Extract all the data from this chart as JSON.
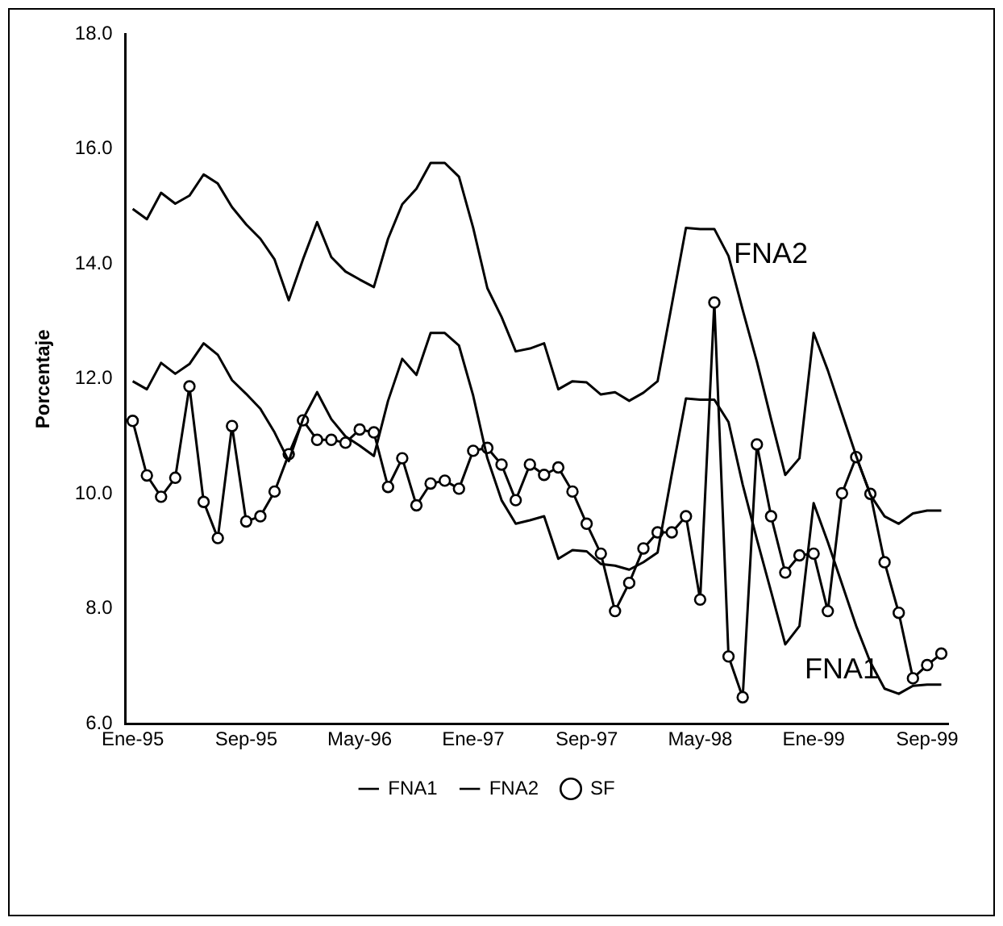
{
  "chart_data": {
    "type": "line",
    "ylabel": "Porcentaje",
    "legend": "bottom",
    "x": [
      "1995-01",
      "1995-02",
      "1995-03",
      "1995-04",
      "1995-05",
      "1995-06",
      "1995-07",
      "1995-08",
      "1995-09",
      "1995-10",
      "1995-11",
      "1995-12",
      "1996-01",
      "1996-02",
      "1996-03",
      "1996-04",
      "1996-05",
      "1996-06",
      "1996-07",
      "1996-08",
      "1996-09",
      "1996-10",
      "1996-11",
      "1996-12",
      "1997-01",
      "1997-02",
      "1997-03",
      "1997-04",
      "1997-05",
      "1997-06",
      "1997-07",
      "1997-08",
      "1997-09",
      "1997-10",
      "1997-11",
      "1997-12",
      "1998-01",
      "1998-02",
      "1998-03",
      "1998-04",
      "1998-05",
      "1998-06",
      "1998-07",
      "1998-08",
      "1998-09",
      "1998-10",
      "1998-11",
      "1998-12",
      "1999-01",
      "1999-02",
      "1999-03",
      "1999-04",
      "1999-05",
      "1999-06",
      "1999-07",
      "1999-08",
      "1999-09",
      "1999-10"
    ],
    "xlim": [
      "1994-12-16",
      "1999-10-16"
    ],
    "xticks": [
      {
        "value": "1995-01",
        "label": "Ene-95"
      },
      {
        "value": "1995-09",
        "label": "Sep-95"
      },
      {
        "value": "1996-05",
        "label": "May-96"
      },
      {
        "value": "1997-01",
        "label": "Ene-97"
      },
      {
        "value": "1997-09",
        "label": "Sep-97"
      },
      {
        "value": "1998-05",
        "label": "May-98"
      },
      {
        "value": "1999-01",
        "label": "Ene-99"
      },
      {
        "value": "1999-09",
        "label": "Sep-99"
      }
    ],
    "ylim": [
      6,
      18
    ],
    "yticks": [
      {
        "value": 6,
        "label": "6.0"
      },
      {
        "value": 8,
        "label": "8.0"
      },
      {
        "value": 10,
        "label": "10.0"
      },
      {
        "value": 12,
        "label": "12.0"
      },
      {
        "value": 14,
        "label": "14.0"
      },
      {
        "value": 16,
        "label": "16.0"
      },
      {
        "value": 18,
        "label": "18.0"
      }
    ],
    "series": [
      {
        "name": "FNA1",
        "color": "#000000",
        "values": [
          11.96,
          11.82,
          12.28,
          12.09,
          12.26,
          12.62,
          12.42,
          11.98,
          11.74,
          11.48,
          11.07,
          10.57,
          11.3,
          11.77,
          11.3,
          11.0,
          10.84,
          10.66,
          11.62,
          12.35,
          12.07,
          12.8,
          12.8,
          12.58,
          11.71,
          10.62,
          9.89,
          9.48,
          9.54,
          9.61,
          8.87,
          9.02,
          9.0,
          8.78,
          8.75,
          8.68,
          8.81,
          8.98,
          10.34,
          11.66,
          11.64,
          11.64,
          11.25,
          10.16,
          9.21,
          8.3,
          7.38,
          7.7,
          9.84,
          9.16,
          8.43,
          7.7,
          7.07,
          6.61,
          6.52,
          6.66,
          6.68,
          6.68
        ]
      },
      {
        "name": "FNA2",
        "color": "#000000",
        "values": [
          14.96,
          14.78,
          15.24,
          15.05,
          15.19,
          15.56,
          15.4,
          14.99,
          14.69,
          14.44,
          14.08,
          13.37,
          14.08,
          14.73,
          14.12,
          13.87,
          13.73,
          13.6,
          14.44,
          15.04,
          15.31,
          15.76,
          15.76,
          15.52,
          14.63,
          13.58,
          13.08,
          12.48,
          12.53,
          12.62,
          11.82,
          11.96,
          11.94,
          11.73,
          11.77,
          11.62,
          11.76,
          11.96,
          13.29,
          14.63,
          14.61,
          14.61,
          14.14,
          13.2,
          12.3,
          11.3,
          10.33,
          10.62,
          12.8,
          12.15,
          11.4,
          10.66,
          9.98,
          9.61,
          9.48,
          9.66,
          9.71,
          9.71
        ]
      },
      {
        "name": "SF",
        "color": "#000000",
        "marker": "circle",
        "values": [
          11.27,
          10.32,
          9.95,
          10.28,
          11.87,
          9.86,
          9.23,
          11.18,
          9.52,
          9.61,
          10.04,
          10.69,
          11.28,
          10.94,
          10.94,
          10.89,
          11.12,
          11.07,
          10.12,
          10.62,
          9.8,
          10.18,
          10.23,
          10.09,
          10.75,
          10.8,
          10.51,
          9.89,
          10.51,
          10.33,
          10.46,
          10.04,
          9.48,
          8.96,
          7.96,
          8.45,
          9.05,
          9.33,
          9.33,
          9.61,
          8.16,
          13.33,
          7.17,
          6.46,
          10.86,
          9.61,
          8.63,
          8.93,
          8.96,
          7.96,
          10.01,
          10.64,
          10.0,
          8.81,
          7.93,
          6.79,
          7.02,
          7.22
        ]
      }
    ],
    "annotations": [
      {
        "text": "FNA2",
        "x": "1998-06",
        "y": 14.61
      },
      {
        "text": "FNA1",
        "x": "1998-11",
        "y": 7.38
      }
    ]
  }
}
